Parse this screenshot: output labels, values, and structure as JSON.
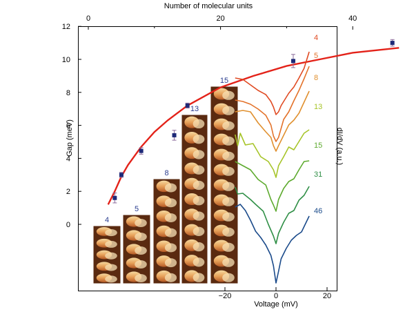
{
  "chart_data": [
    {
      "type": "scatter",
      "x_axis_label": "Number of molecular units",
      "x_ticks": [
        "0",
        "20",
        "40"
      ],
      "y_axis_label": "Gap (meV)",
      "y_ticks": [
        "0",
        "2",
        "4",
        "6",
        "8",
        "10",
        "12"
      ],
      "xlim": [
        0,
        50
      ],
      "ylim": [
        0,
        12
      ],
      "points": [
        {
          "x": 4,
          "y": 1.6,
          "err": 0.3
        },
        {
          "x": 5,
          "y": 3.0,
          "err": 0.15
        },
        {
          "x": 8,
          "y": 4.45,
          "err": 0.2
        },
        {
          "x": 13,
          "y": 5.4,
          "err": 0.3
        },
        {
          "x": 15,
          "y": 7.2,
          "err": 0.15
        },
        {
          "x": 31,
          "y": 9.9,
          "err": 0.4
        },
        {
          "x": 46,
          "y": 11.0,
          "err": 0.2
        }
      ],
      "fit_curve": [
        {
          "x": 3,
          "y": 1.2
        },
        {
          "x": 4,
          "y": 2.0
        },
        {
          "x": 5,
          "y": 2.9
        },
        {
          "x": 6,
          "y": 3.6
        },
        {
          "x": 8,
          "y": 4.7
        },
        {
          "x": 10,
          "y": 5.6
        },
        {
          "x": 12,
          "y": 6.3
        },
        {
          "x": 15,
          "y": 7.2
        },
        {
          "x": 20,
          "y": 8.3
        },
        {
          "x": 25,
          "y": 9.0
        },
        {
          "x": 30,
          "y": 9.6
        },
        {
          "x": 35,
          "y": 10.0
        },
        {
          "x": 40,
          "y": 10.4
        },
        {
          "x": 47,
          "y": 10.7
        }
      ],
      "fit_color": "#e32219",
      "marker_color": "#1e2a78",
      "grid": false
    },
    {
      "type": "line",
      "x_axis_label": "Voltage (mV)",
      "x_ticks": [
        "−20",
        "0",
        "20"
      ],
      "y_axis_label": "dI/dV (a.u.)",
      "xlim": [
        -50,
        22
      ],
      "series": [
        {
          "name": "4",
          "color": "#e04a22",
          "points": [
            [
              -16,
              113
            ],
            [
              -13,
              115
            ],
            [
              -10,
              123
            ],
            [
              -7,
              131
            ],
            [
              -4,
              137
            ],
            [
              -2,
              147
            ],
            [
              -1,
              155
            ],
            [
              0,
              166
            ],
            [
              1,
              162
            ],
            [
              2,
              153
            ],
            [
              3,
              147
            ],
            [
              5,
              135
            ],
            [
              7,
              126
            ],
            [
              9,
              113
            ],
            [
              11,
              99
            ],
            [
              13,
              75
            ]
          ]
        },
        {
          "name": "5",
          "color": "#e3722a",
          "points": [
            [
              -16,
              145
            ],
            [
              -13,
              147
            ],
            [
              -10,
              151
            ],
            [
              -7,
              158
            ],
            [
              -4,
              167
            ],
            [
              -2,
              181
            ],
            [
              -1,
              197
            ],
            [
              0,
              205
            ],
            [
              1,
              199
            ],
            [
              2,
              186
            ],
            [
              3,
              173
            ],
            [
              5,
              162
            ],
            [
              7,
              146
            ],
            [
              9,
              131
            ],
            [
              11,
              114
            ],
            [
              13,
              96
            ]
          ]
        },
        {
          "name": "8",
          "color": "#e0902f",
          "points": [
            [
              -16,
              162
            ],
            [
              -13,
              160
            ],
            [
              -10,
              162
            ],
            [
              -7,
              178
            ],
            [
              -4,
              191
            ],
            [
              -2,
              199
            ],
            [
              -1,
              211
            ],
            [
              0,
              219
            ],
            [
              1,
              211
            ],
            [
              3,
              196
            ],
            [
              5,
              181
            ],
            [
              7,
              174
            ],
            [
              9,
              164
            ],
            [
              11,
              148
            ],
            [
              13,
              132
            ]
          ]
        },
        {
          "name": "13",
          "color": "#a6c428",
          "points": [
            [
              -16,
              195
            ],
            [
              -15,
              211
            ],
            [
              -14,
              193
            ],
            [
              -12,
              210
            ],
            [
              -9,
              208
            ],
            [
              -6,
              227
            ],
            [
              -3,
              234
            ],
            [
              -1,
              246
            ],
            [
              0,
              257
            ],
            [
              1,
              240
            ],
            [
              3,
              227
            ],
            [
              5,
              213
            ],
            [
              7,
              217
            ],
            [
              9,
              205
            ],
            [
              11,
              193
            ],
            [
              13,
              188
            ]
          ]
        },
        {
          "name": "15",
          "color": "#5daa2e",
          "points": [
            [
              -16,
              234
            ],
            [
              -13,
              240
            ],
            [
              -10,
              246
            ],
            [
              -7,
              260
            ],
            [
              -4,
              268
            ],
            [
              -2,
              289
            ],
            [
              -1,
              297
            ],
            [
              0,
              306
            ],
            [
              1,
              289
            ],
            [
              3,
              273
            ],
            [
              5,
              263
            ],
            [
              7,
              259
            ],
            [
              9,
              246
            ],
            [
              11,
              234
            ],
            [
              13,
              233
            ]
          ]
        },
        {
          "name": "31",
          "color": "#2f8f46",
          "points": [
            [
              -16,
              271
            ],
            [
              -15,
              281
            ],
            [
              -13,
              280
            ],
            [
              -10,
              289
            ],
            [
              -8,
              296
            ],
            [
              -5,
              306
            ],
            [
              -3,
              325
            ],
            [
              -1,
              342
            ],
            [
              0,
              353
            ],
            [
              1,
              338
            ],
            [
              3,
              322
            ],
            [
              5,
              309
            ],
            [
              7,
              305
            ],
            [
              9,
              290
            ],
            [
              11,
              283
            ],
            [
              13,
              270
            ]
          ]
        },
        {
          "name": "46",
          "color": "#1a4a8a",
          "points": [
            [
              -16,
              300
            ],
            [
              -14,
              296
            ],
            [
              -12,
              305
            ],
            [
              -10,
              319
            ],
            [
              -8,
              335
            ],
            [
              -6,
              344
            ],
            [
              -4,
              355
            ],
            [
              -2,
              370
            ],
            [
              -1,
              385
            ],
            [
              0,
              410
            ],
            [
              1,
              393
            ],
            [
              2,
              375
            ],
            [
              4,
              360
            ],
            [
              6,
              348
            ],
            [
              8,
              341
            ],
            [
              10,
              336
            ],
            [
              13,
              313
            ]
          ]
        }
      ]
    }
  ],
  "image_labels": [
    "4",
    "5",
    "8",
    "13",
    "15"
  ]
}
